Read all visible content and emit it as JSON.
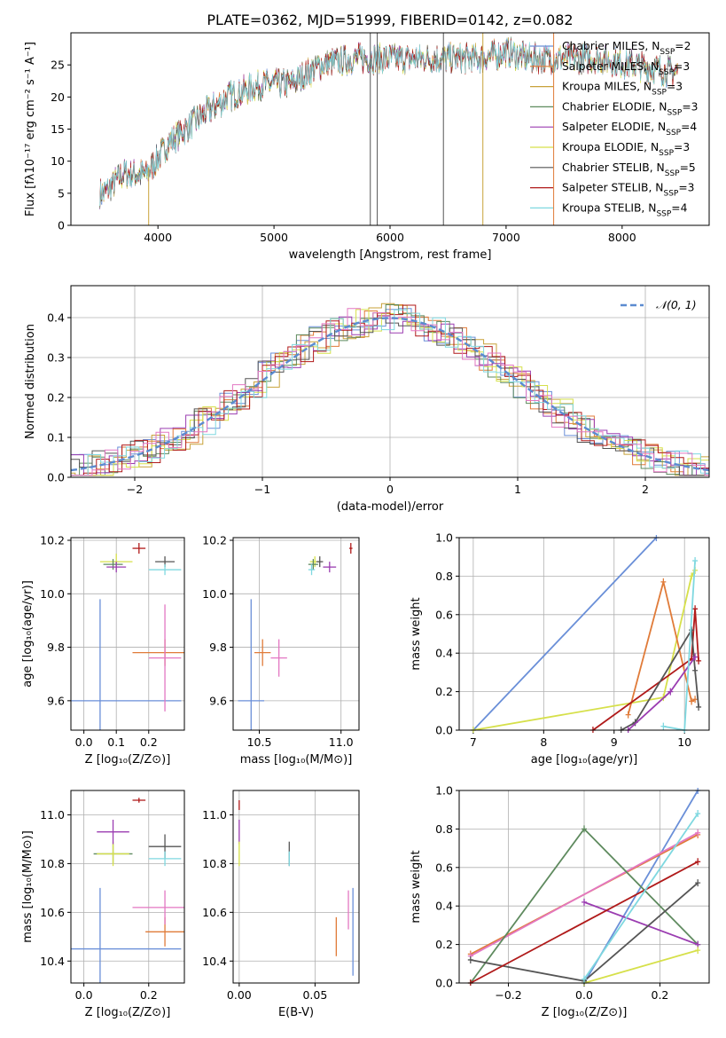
{
  "figure": {
    "title": "PLATE=0362, MJD=51999, FIBERID=0142, z=0.082"
  },
  "colors": [
    "#6a8fd8",
    "#e07b39",
    "#c8a23a",
    "#5e8a5e",
    "#9b3db1",
    "#d6e04a",
    "#555555",
    "#b01a1a",
    "#7fd8e0"
  ],
  "legend": [
    {
      "model": "Chabrier MILES",
      "nssp": "2",
      "color": "#6a8fd8"
    },
    {
      "model": "Salpeter MILES",
      "nssp": "3",
      "color": "#e07b39"
    },
    {
      "model": "Kroupa MILES",
      "nssp": "3",
      "color": "#c8a23a"
    },
    {
      "model": "Chabrier ELODIE",
      "nssp": "3",
      "color": "#5e8a5e"
    },
    {
      "model": "Salpeter ELODIE",
      "nssp": "4",
      "color": "#9b3db1"
    },
    {
      "model": "Kroupa ELODIE",
      "nssp": "3",
      "color": "#d6e04a"
    },
    {
      "model": "Chabrier STELIB",
      "nssp": "5",
      "color": "#555555"
    },
    {
      "model": "Salpeter STELIB",
      "nssp": "3",
      "color": "#b01a1a"
    },
    {
      "model": "Kroupa STELIB",
      "nssp": "4",
      "color": "#7fd8e0"
    }
  ],
  "chart_data": [
    {
      "id": "spectrum",
      "type": "line",
      "xlabel": "wavelength [Angstrom, rest frame]",
      "ylabel": "Flux [fλ10⁻¹⁷ erg cm⁻² s⁻¹ A⁻¹]",
      "xlim": [
        3250,
        8750
      ],
      "ylim": [
        0,
        30
      ],
      "xticks": [
        4000,
        5000,
        6000,
        7000,
        8000
      ],
      "yticks": [
        0,
        5,
        10,
        15,
        20,
        25
      ],
      "grid": false,
      "legend_position": "top-right",
      "x": [
        3530,
        3700,
        3900,
        4100,
        4300,
        4600,
        4900,
        5150,
        5400,
        5700,
        5900,
        6200,
        6500,
        6800,
        7000,
        7200,
        7500,
        7800,
        8100,
        8400
      ],
      "y": [
        5,
        8,
        8,
        13,
        16,
        20,
        22,
        22,
        25,
        26,
        26,
        26,
        26,
        26,
        27,
        26,
        26,
        26,
        25,
        24
      ]
    },
    {
      "id": "residual-histogram",
      "type": "bar",
      "xlabel": "(data-model)/error",
      "ylabel": "Normed distribution",
      "xlim": [
        -2.5,
        2.5
      ],
      "ylim": [
        0,
        0.48
      ],
      "xticks": [
        -2,
        -1,
        0,
        1,
        2
      ],
      "yticks": [
        0.0,
        0.1,
        0.2,
        0.3,
        0.4
      ],
      "grid": true,
      "legend_position": "top-right",
      "reference_label": "𝒩(0, 1)",
      "reference_mean": 0,
      "reference_sigma": 1
    },
    {
      "id": "age-vs-Z",
      "type": "scatter",
      "xlabel": "Z [log₁₀(Z/Z⊙)]",
      "ylabel": "age  [log₁₀(age/yr)]",
      "xlim": [
        -0.04,
        0.31
      ],
      "ylim": [
        9.49,
        10.21
      ],
      "xticks": [
        0.0,
        0.1,
        0.2
      ],
      "yticks": [
        9.6,
        9.8,
        10.0,
        10.2
      ],
      "grid": true,
      "points": [
        {
          "x": 0.05,
          "y": 9.6,
          "xerr": 0.25,
          "yerr": 0.38,
          "color": "#6a8fd8"
        },
        {
          "x": 0.25,
          "y": 9.78,
          "xerr": 0.1,
          "yerr": 0.05,
          "color": "#e07b39"
        },
        {
          "x": 0.25,
          "y": 9.76,
          "xerr": 0.05,
          "yerr": 0.2,
          "color": "#e377c2"
        },
        {
          "x": 0.1,
          "y": 10.12,
          "xerr": 0.05,
          "yerr": 0.03,
          "color": "#d6e04a"
        },
        {
          "x": 0.09,
          "y": 10.11,
          "xerr": 0.03,
          "yerr": 0.02,
          "color": "#5e8a5e"
        },
        {
          "x": 0.1,
          "y": 10.1,
          "xerr": 0.03,
          "yerr": 0.02,
          "color": "#9b3db1"
        },
        {
          "x": 0.25,
          "y": 10.12,
          "xerr": 0.03,
          "yerr": 0.02,
          "color": "#555555"
        },
        {
          "x": 0.17,
          "y": 10.17,
          "xerr": 0.02,
          "yerr": 0.02,
          "color": "#b01a1a"
        },
        {
          "x": 0.25,
          "y": 10.09,
          "xerr": 0.05,
          "yerr": 0.02,
          "color": "#7fd8e0"
        }
      ]
    },
    {
      "id": "age-vs-mass",
      "type": "scatter",
      "xlabel": "mass [log₁₀(M/M⊙)]",
      "ylabel": "",
      "xlim": [
        10.34,
        11.11
      ],
      "ylim": [
        9.49,
        10.21
      ],
      "xticks": [
        10.5,
        11.0
      ],
      "yticks": [
        9.6,
        9.8,
        10.0,
        10.2
      ],
      "grid": true,
      "points": [
        {
          "x": 10.45,
          "y": 9.6,
          "xerr": 0.08,
          "yerr": 0.38,
          "color": "#6a8fd8"
        },
        {
          "x": 10.52,
          "y": 9.78,
          "xerr": 0.05,
          "yerr": 0.05,
          "color": "#e07b39"
        },
        {
          "x": 10.62,
          "y": 9.76,
          "xerr": 0.05,
          "yerr": 0.07,
          "color": "#e377c2"
        },
        {
          "x": 10.84,
          "y": 10.12,
          "xerr": 0.03,
          "yerr": 0.02,
          "color": "#d6e04a"
        },
        {
          "x": 10.83,
          "y": 10.11,
          "xerr": 0.03,
          "yerr": 0.02,
          "color": "#5e8a5e"
        },
        {
          "x": 10.93,
          "y": 10.1,
          "xerr": 0.04,
          "yerr": 0.02,
          "color": "#9b3db1"
        },
        {
          "x": 10.87,
          "y": 10.12,
          "xerr": 0.02,
          "yerr": 0.02,
          "color": "#555555"
        },
        {
          "x": 11.06,
          "y": 10.17,
          "xerr": 0.01,
          "yerr": 0.02,
          "color": "#b01a1a"
        },
        {
          "x": 10.82,
          "y": 10.09,
          "xerr": 0.02,
          "yerr": 0.02,
          "color": "#7fd8e0"
        }
      ]
    },
    {
      "id": "weight-vs-age",
      "type": "line",
      "xlabel": "age  [log₁₀(age/yr)]",
      "ylabel": "mass weight",
      "xlim": [
        6.8,
        10.35
      ],
      "ylim": [
        0,
        1.0
      ],
      "xticks": [
        7,
        8,
        9,
        10
      ],
      "yticks": [
        0.0,
        0.2,
        0.4,
        0.6,
        0.8,
        1.0
      ],
      "grid": true,
      "series": [
        {
          "color": "#6a8fd8",
          "x": [
            7.0,
            9.6
          ],
          "y": [
            0.0,
            1.0
          ]
        },
        {
          "color": "#d6e04a",
          "x": [
            7.0,
            9.7,
            10.1,
            10.15
          ],
          "y": [
            0.0,
            0.17,
            0.8,
            0.83
          ]
        },
        {
          "color": "#e07b39",
          "x": [
            9.2,
            9.7,
            10.1,
            10.15
          ],
          "y": [
            0.08,
            0.77,
            0.15,
            0.16
          ]
        },
        {
          "color": "#b01a1a",
          "x": [
            8.7,
            10.1,
            10.15,
            10.2
          ],
          "y": [
            0.0,
            0.37,
            0.63,
            0.36
          ]
        },
        {
          "color": "#555555",
          "x": [
            9.1,
            9.3,
            10.1,
            10.15,
            10.2
          ],
          "y": [
            0.0,
            0.04,
            0.52,
            0.31,
            0.12
          ]
        },
        {
          "color": "#9b3db1",
          "x": [
            9.2,
            9.8,
            10.15
          ],
          "y": [
            0.0,
            0.2,
            0.38
          ]
        },
        {
          "color": "#7fd8e0",
          "x": [
            9.7,
            10.0,
            10.15
          ],
          "y": [
            0.02,
            0.0,
            0.88
          ]
        }
      ]
    },
    {
      "id": "mass-vs-Z",
      "type": "scatter",
      "xlabel": "Z [log₁₀(Z/Z⊙)]",
      "ylabel": "mass [log₁₀(M/M⊙)]",
      "xlim": [
        -0.04,
        0.31
      ],
      "ylim": [
        10.31,
        11.1
      ],
      "xticks": [
        0.0,
        0.2
      ],
      "yticks": [
        10.4,
        10.6,
        10.8,
        11.0
      ],
      "grid": true,
      "points": [
        {
          "x": 0.05,
          "y": 10.45,
          "xerr": 0.25,
          "yerr": 0.25,
          "color": "#6a8fd8"
        },
        {
          "x": 0.25,
          "y": 10.52,
          "xerr": 0.06,
          "yerr": 0.06,
          "color": "#e07b39"
        },
        {
          "x": 0.25,
          "y": 10.62,
          "xerr": 0.1,
          "yerr": 0.07,
          "color": "#e377c2"
        },
        {
          "x": 0.09,
          "y": 10.84,
          "xerr": 0.06,
          "yerr": 0.04,
          "color": "#5e8a5e"
        },
        {
          "x": 0.09,
          "y": 10.84,
          "xerr": 0.05,
          "yerr": 0.05,
          "color": "#d6e04a"
        },
        {
          "x": 0.09,
          "y": 10.93,
          "xerr": 0.05,
          "yerr": 0.05,
          "color": "#9b3db1"
        },
        {
          "x": 0.25,
          "y": 10.87,
          "xerr": 0.05,
          "yerr": 0.05,
          "color": "#555555"
        },
        {
          "x": 0.17,
          "y": 11.06,
          "xerr": 0.02,
          "yerr": 0.01,
          "color": "#b01a1a"
        },
        {
          "x": 0.25,
          "y": 10.82,
          "xerr": 0.05,
          "yerr": 0.03,
          "color": "#7fd8e0"
        }
      ]
    },
    {
      "id": "mass-vs-ebv",
      "type": "scatter",
      "xlabel": "E(B-V)",
      "ylabel": "",
      "xlim": [
        -0.004,
        0.079
      ],
      "ylim": [
        10.31,
        11.1
      ],
      "xticks": [
        0.0,
        0.05
      ],
      "yticks": [
        10.4,
        10.6,
        10.8,
        11.0
      ],
      "grid": true,
      "points": [
        {
          "x": 0.075,
          "y": 10.52,
          "xerr": 0,
          "yerr": 0.18,
          "color": "#6a8fd8"
        },
        {
          "x": 0.064,
          "y": 10.5,
          "xerr": 0,
          "yerr": 0.08,
          "color": "#e07b39"
        },
        {
          "x": 0.072,
          "y": 10.61,
          "xerr": 0,
          "yerr": 0.08,
          "color": "#e377c2"
        },
        {
          "x": 0.033,
          "y": 10.84,
          "xerr": 0,
          "yerr": 0.05,
          "color": "#555555"
        },
        {
          "x": 0.033,
          "y": 10.82,
          "xerr": 0,
          "yerr": 0.03,
          "color": "#7fd8e0"
        },
        {
          "x": 0.0,
          "y": 11.04,
          "xerr": 0,
          "yerr": 0.02,
          "color": "#b01a1a"
        },
        {
          "x": 0.0,
          "y": 10.93,
          "xerr": 0,
          "yerr": 0.05,
          "color": "#9b3db1"
        },
        {
          "x": 0.0,
          "y": 10.84,
          "xerr": 0,
          "yerr": 0.05,
          "color": "#d6e04a"
        }
      ]
    },
    {
      "id": "weight-vs-Z",
      "type": "line",
      "xlabel": "Z [log₁₀(Z/Z⊙)]",
      "ylabel": "mass weight",
      "xlim": [
        -0.33,
        0.33
      ],
      "ylim": [
        0,
        1.0
      ],
      "xticks": [
        -0.2,
        0.0,
        0.2
      ],
      "yticks": [
        0.0,
        0.2,
        0.4,
        0.6,
        0.8,
        1.0
      ],
      "grid": true,
      "series": [
        {
          "color": "#6a8fd8",
          "x": [
            0.0,
            0.3
          ],
          "y": [
            0.0,
            1.0
          ]
        },
        {
          "color": "#e07b39",
          "x": [
            -0.3,
            0.3
          ],
          "y": [
            0.15,
            0.77
          ]
        },
        {
          "color": "#e377c2",
          "x": [
            -0.3,
            0.3
          ],
          "y": [
            0.14,
            0.78
          ]
        },
        {
          "color": "#5e8a5e",
          "x": [
            -0.3,
            0.0,
            0.3
          ],
          "y": [
            0.0,
            0.8,
            0.2
          ]
        },
        {
          "color": "#9b3db1",
          "x": [
            0.0,
            0.3
          ],
          "y": [
            0.42,
            0.2
          ]
        },
        {
          "color": "#d6e04a",
          "x": [
            0.0,
            0.3
          ],
          "y": [
            0.0,
            0.17
          ]
        },
        {
          "color": "#555555",
          "x": [
            -0.3,
            0.0,
            0.3
          ],
          "y": [
            0.12,
            0.01,
            0.52
          ]
        },
        {
          "color": "#b01a1a",
          "x": [
            -0.3,
            0.3
          ],
          "y": [
            0.0,
            0.63
          ]
        },
        {
          "color": "#7fd8e0",
          "x": [
            0.0,
            0.3
          ],
          "y": [
            0.02,
            0.88
          ]
        }
      ]
    }
  ]
}
